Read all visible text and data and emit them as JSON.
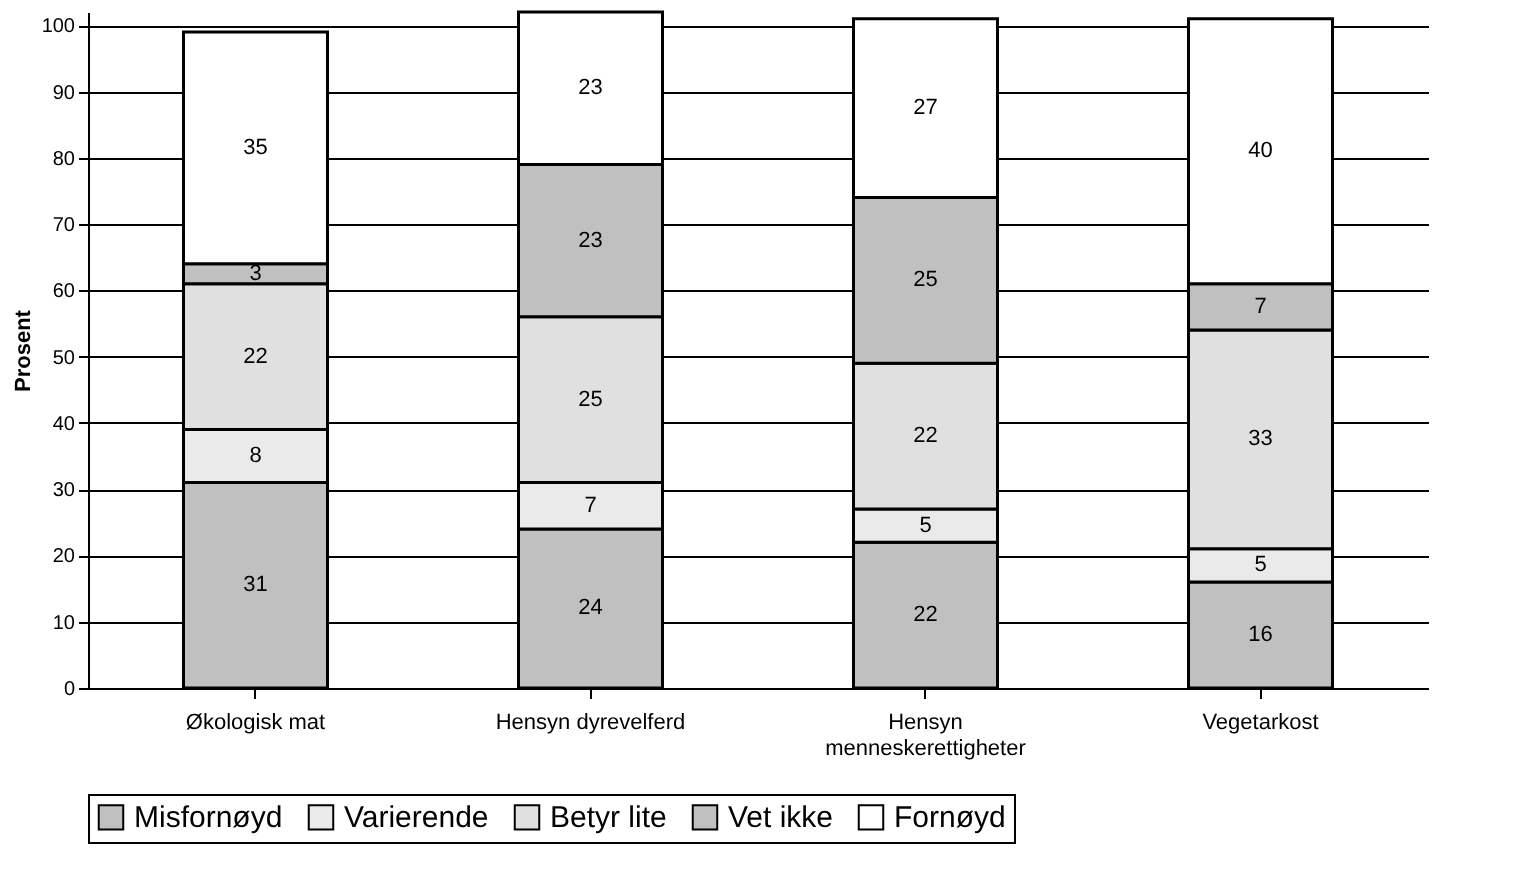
{
  "chart_data": {
    "type": "bar",
    "stacked": true,
    "ylabel": "Prosent",
    "categories": [
      "Økologisk mat",
      "Hensyn dyrevelferd",
      "Hensyn menneskerettigheter",
      "Vegetarkost"
    ],
    "series": [
      {
        "name": "Misfornøyd",
        "color": "#c0c0c0",
        "values": [
          31,
          24,
          22,
          16
        ]
      },
      {
        "name": "Varierende",
        "color": "#eaeaea",
        "values": [
          8,
          7,
          5,
          5
        ]
      },
      {
        "name": "Betyr lite",
        "color": "#e0e0e0",
        "values": [
          22,
          25,
          22,
          33
        ]
      },
      {
        "name": "Vet ikke",
        "color": "#c0c0c0",
        "values": [
          3,
          23,
          25,
          7
        ]
      },
      {
        "name": "Fornøyd",
        "color": "#ffffff",
        "values": [
          35,
          23,
          27,
          40
        ]
      }
    ],
    "ylim": [
      0,
      102
    ],
    "yticks": [
      0,
      10,
      20,
      30,
      40,
      50,
      60,
      70,
      80,
      90,
      100
    ],
    "grid": "y",
    "legend": "bottom",
    "data_labels": true
  }
}
